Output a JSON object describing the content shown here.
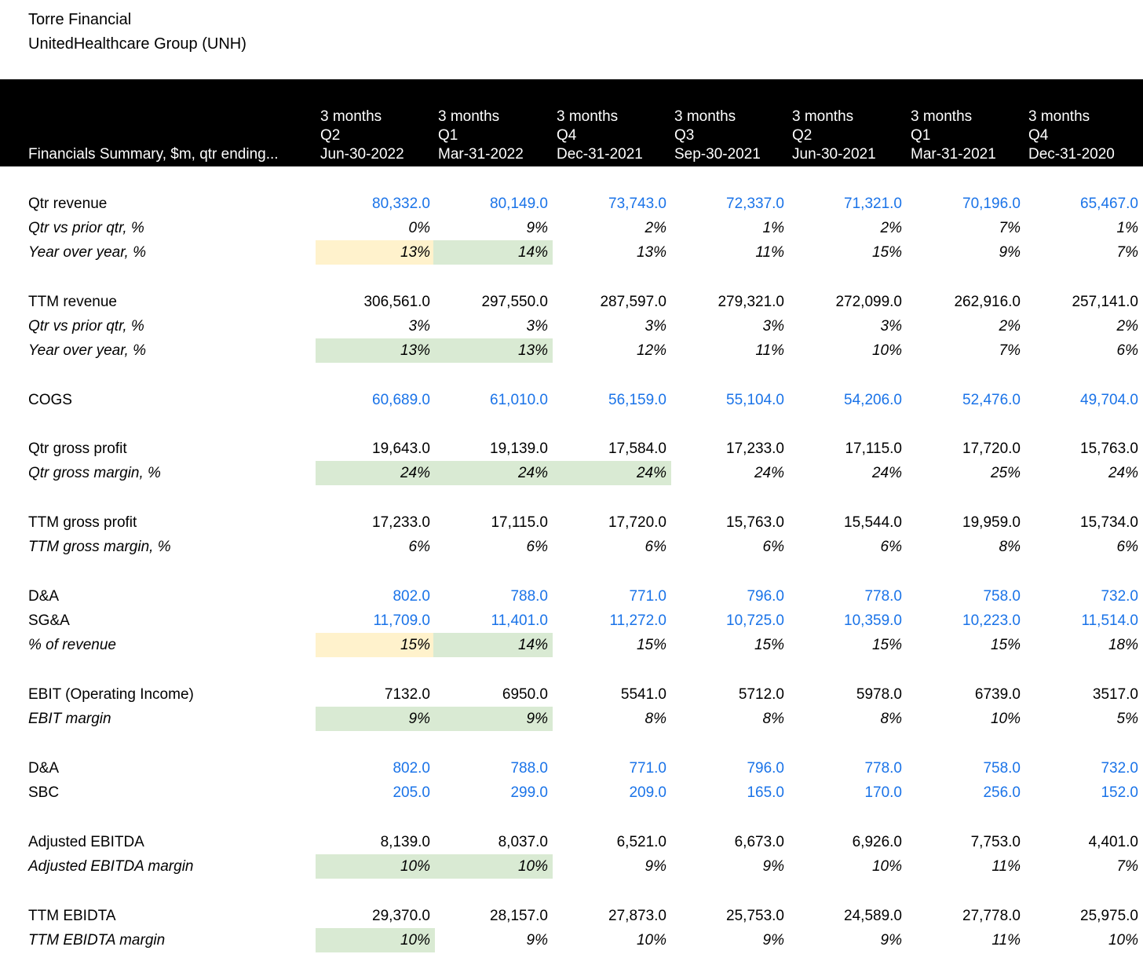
{
  "header": {
    "company": "Torre Financial",
    "subtitle": "UnitedHealthcare Group (UNH)",
    "row_label": "Financials Summary, $m, qtr ending...",
    "columns": [
      {
        "period": "3 months",
        "quarter": "Q2",
        "date": "Jun-30-2022"
      },
      {
        "period": "3 months",
        "quarter": "Q1",
        "date": "Mar-31-2022"
      },
      {
        "period": "3 months",
        "quarter": "Q4",
        "date": "Dec-31-2021"
      },
      {
        "period": "3 months",
        "quarter": "Q3",
        "date": "Sep-30-2021"
      },
      {
        "period": "3 months",
        "quarter": "Q2",
        "date": "Jun-30-2021"
      },
      {
        "period": "3 months",
        "quarter": "Q1",
        "date": "Mar-31-2021"
      },
      {
        "period": "3 months",
        "quarter": "Q4",
        "date": "Dec-31-2020"
      }
    ]
  },
  "colors": {
    "input_blue": "#1a73e8",
    "highlight_green": "#d9ead3",
    "highlight_yellow": "#fff2cc",
    "header_bg": "#000000"
  },
  "rows": [
    {
      "label": "Qtr revenue",
      "style": "input",
      "values": [
        "80,332.0",
        "80,149.0",
        "73,743.0",
        "72,337.0",
        "71,321.0",
        "70,196.0",
        "65,467.0"
      ],
      "highlights": [
        "",
        "",
        "",
        "",
        "",
        "",
        ""
      ]
    },
    {
      "label": "Qtr vs prior qtr, %",
      "style": "italic",
      "values": [
        "0%",
        "9%",
        "2%",
        "1%",
        "2%",
        "7%",
        "1%"
      ],
      "highlights": [
        "",
        "",
        "",
        "",
        "",
        "",
        ""
      ]
    },
    {
      "label": "Year over year, %",
      "style": "italic",
      "values": [
        "13%",
        "14%",
        "13%",
        "11%",
        "15%",
        "9%",
        "7%"
      ],
      "highlights": [
        "yellow",
        "green",
        "",
        "",
        "",
        "",
        ""
      ]
    },
    {
      "label": "TTM revenue",
      "style": "normal",
      "values": [
        "306,561.0",
        "297,550.0",
        "287,597.0",
        "279,321.0",
        "272,099.0",
        "262,916.0",
        "257,141.0"
      ],
      "highlights": [
        "",
        "",
        "",
        "",
        "",
        "",
        ""
      ]
    },
    {
      "label": "Qtr vs prior qtr, %",
      "style": "italic",
      "values": [
        "3%",
        "3%",
        "3%",
        "3%",
        "3%",
        "2%",
        "2%"
      ],
      "highlights": [
        "",
        "",
        "",
        "",
        "",
        "",
        ""
      ]
    },
    {
      "label": "Year over year, %",
      "style": "italic",
      "values": [
        "13%",
        "13%",
        "12%",
        "11%",
        "10%",
        "7%",
        "6%"
      ],
      "highlights": [
        "green",
        "green",
        "",
        "",
        "",
        "",
        ""
      ]
    },
    {
      "label": "COGS",
      "style": "input",
      "values": [
        "60,689.0",
        "61,010.0",
        "56,159.0",
        "55,104.0",
        "54,206.0",
        "52,476.0",
        "49,704.0"
      ],
      "highlights": [
        "",
        "",
        "",
        "",
        "",
        "",
        ""
      ]
    },
    {
      "label": "Qtr gross profit",
      "style": "normal",
      "values": [
        "19,643.0",
        "19,139.0",
        "17,584.0",
        "17,233.0",
        "17,115.0",
        "17,720.0",
        "15,763.0"
      ],
      "highlights": [
        "",
        "",
        "",
        "",
        "",
        "",
        ""
      ]
    },
    {
      "label": "Qtr gross margin, %",
      "style": "italic",
      "values": [
        "24%",
        "24%",
        "24%",
        "24%",
        "24%",
        "25%",
        "24%"
      ],
      "highlights": [
        "green",
        "green",
        "green",
        "",
        "",
        "",
        ""
      ]
    },
    {
      "label": "TTM gross profit",
      "style": "normal",
      "values": [
        "17,233.0",
        "17,115.0",
        "17,720.0",
        "15,763.0",
        "15,544.0",
        "19,959.0",
        "15,734.0"
      ],
      "highlights": [
        "",
        "",
        "",
        "",
        "",
        "",
        ""
      ]
    },
    {
      "label": "TTM gross margin, %",
      "style": "italic",
      "values": [
        "6%",
        "6%",
        "6%",
        "6%",
        "6%",
        "8%",
        "6%"
      ],
      "highlights": [
        "",
        "",
        "",
        "",
        "",
        "",
        ""
      ]
    },
    {
      "label": "D&A",
      "style": "input",
      "values": [
        "802.0",
        "788.0",
        "771.0",
        "796.0",
        "778.0",
        "758.0",
        "732.0"
      ],
      "highlights": [
        "",
        "",
        "",
        "",
        "",
        "",
        ""
      ]
    },
    {
      "label": "SG&A",
      "style": "input",
      "values": [
        "11,709.0",
        "11,401.0",
        "11,272.0",
        "10,725.0",
        "10,359.0",
        "10,223.0",
        "11,514.0"
      ],
      "highlights": [
        "",
        "",
        "",
        "",
        "",
        "",
        ""
      ]
    },
    {
      "label": "% of revenue",
      "style": "italic",
      "values": [
        "15%",
        "14%",
        "15%",
        "15%",
        "15%",
        "15%",
        "18%"
      ],
      "highlights": [
        "yellow",
        "green",
        "",
        "",
        "",
        "",
        ""
      ]
    },
    {
      "label": "EBIT (Operating Income)",
      "style": "normal",
      "values": [
        "7132.0",
        "6950.0",
        "5541.0",
        "5712.0",
        "5978.0",
        "6739.0",
        "3517.0"
      ],
      "highlights": [
        "",
        "",
        "",
        "",
        "",
        "",
        ""
      ]
    },
    {
      "label": "EBIT margin",
      "style": "italic",
      "values": [
        "9%",
        "9%",
        "8%",
        "8%",
        "8%",
        "10%",
        "5%"
      ],
      "highlights": [
        "green",
        "green",
        "",
        "",
        "",
        "",
        ""
      ]
    },
    {
      "label": "D&A",
      "style": "input",
      "values": [
        "802.0",
        "788.0",
        "771.0",
        "796.0",
        "778.0",
        "758.0",
        "732.0"
      ],
      "highlights": [
        "",
        "",
        "",
        "",
        "",
        "",
        ""
      ]
    },
    {
      "label": "SBC",
      "style": "input",
      "values": [
        "205.0",
        "299.0",
        "209.0",
        "165.0",
        "170.0",
        "256.0",
        "152.0"
      ],
      "highlights": [
        "",
        "",
        "",
        "",
        "",
        "",
        ""
      ]
    },
    {
      "label": "Adjusted EBITDA",
      "style": "normal",
      "values": [
        "8,139.0",
        "8,037.0",
        "6,521.0",
        "6,673.0",
        "6,926.0",
        "7,753.0",
        "4,401.0"
      ],
      "highlights": [
        "",
        "",
        "",
        "",
        "",
        "",
        ""
      ]
    },
    {
      "label": "Adjusted EBITDA margin",
      "style": "italic",
      "values": [
        "10%",
        "10%",
        "9%",
        "9%",
        "10%",
        "11%",
        "7%"
      ],
      "highlights": [
        "green",
        "green",
        "",
        "",
        "",
        "",
        ""
      ]
    },
    {
      "label": "TTM EBIDTA",
      "style": "normal",
      "values": [
        "29,370.0",
        "28,157.0",
        "27,873.0",
        "25,753.0",
        "24,589.0",
        "27,778.0",
        "25,975.0"
      ],
      "highlights": [
        "",
        "",
        "",
        "",
        "",
        "",
        ""
      ]
    },
    {
      "label": "TTM EBIDTA margin",
      "style": "italic",
      "values": [
        "10%",
        "9%",
        "10%",
        "9%",
        "9%",
        "11%",
        "10%"
      ],
      "highlights": [
        "green",
        "",
        "",
        "",
        "",
        "",
        ""
      ]
    }
  ]
}
